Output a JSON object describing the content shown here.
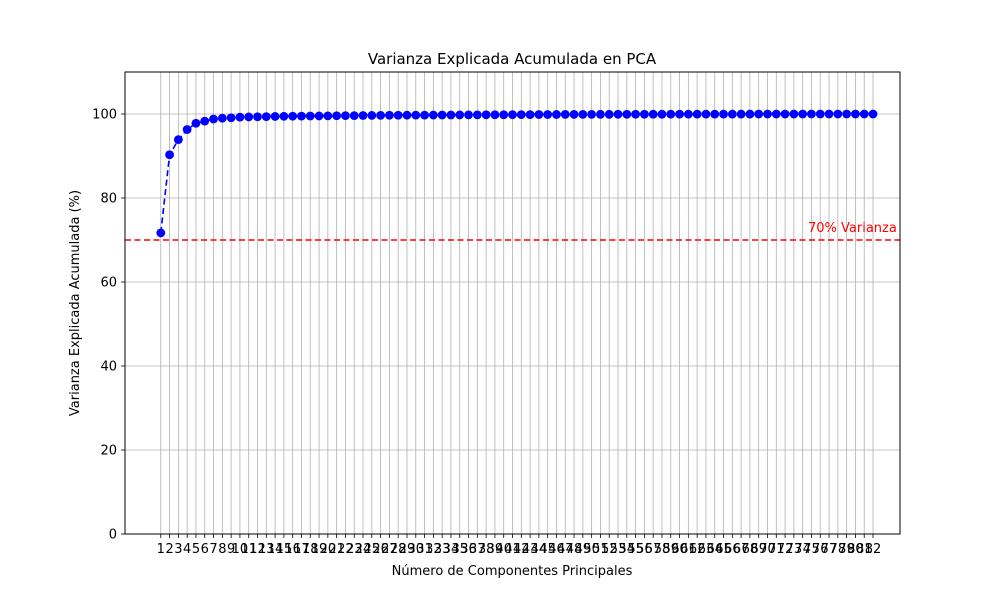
{
  "chart_data": {
    "type": "line",
    "title": "Varianza Explicada Acumulada en PCA",
    "xlabel": "Número de Componentes Principales",
    "ylabel": "Varianza Explicada Acumulada (%)",
    "xlim": [
      -3.07,
      85.07
    ],
    "ylim": [
      0,
      110
    ],
    "grid": true,
    "y_ticks": [
      0,
      20,
      40,
      60,
      80,
      100
    ],
    "x": [
      1,
      2,
      3,
      4,
      5,
      6,
      7,
      8,
      9,
      10,
      11,
      12,
      13,
      14,
      15,
      16,
      17,
      18,
      19,
      20,
      21,
      22,
      23,
      24,
      25,
      26,
      27,
      28,
      29,
      30,
      31,
      32,
      33,
      34,
      35,
      36,
      37,
      38,
      39,
      40,
      41,
      42,
      43,
      44,
      45,
      46,
      47,
      48,
      49,
      50,
      51,
      52,
      53,
      54,
      55,
      56,
      57,
      58,
      59,
      60,
      61,
      62,
      63,
      64,
      65,
      66,
      67,
      68,
      69,
      70,
      71,
      72,
      73,
      74,
      75,
      76,
      77,
      78,
      79,
      80,
      81,
      82
    ],
    "series": [
      {
        "color": "#0000ff",
        "line_style": "dashed",
        "marker": "circle",
        "values": [
          71.7,
          90.3,
          93.9,
          96.3,
          97.8,
          98.3,
          98.8,
          99.0,
          99.1,
          99.25,
          99.3,
          99.35,
          99.38,
          99.42,
          99.45,
          99.48,
          99.5,
          99.52,
          99.54,
          99.56,
          99.58,
          99.6,
          99.62,
          99.64,
          99.66,
          99.68,
          99.7,
          99.71,
          99.72,
          99.73,
          99.74,
          99.75,
          99.76,
          99.77,
          99.78,
          99.79,
          99.8,
          99.81,
          99.82,
          99.83,
          99.84,
          99.85,
          99.86,
          99.87,
          99.88,
          99.89,
          99.9,
          99.9,
          99.91,
          99.91,
          99.92,
          99.92,
          99.93,
          99.93,
          99.94,
          99.94,
          99.95,
          99.95,
          99.96,
          99.96,
          99.96,
          99.97,
          99.97,
          99.97,
          99.98,
          99.98,
          99.98,
          99.98,
          99.99,
          99.99,
          99.99,
          99.99,
          99.99,
          100,
          100,
          100,
          100,
          100,
          100,
          100,
          100,
          100
        ]
      }
    ],
    "reference_line": {
      "orientation": "horizontal",
      "y": 70,
      "color": "#ff0000",
      "style": "dashed",
      "label": "70% Varianza"
    }
  }
}
